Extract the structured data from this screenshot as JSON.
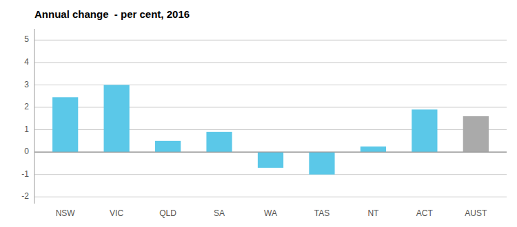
{
  "chart_data": {
    "type": "bar",
    "title": "Annual change  - per cent, 2016",
    "categories": [
      "NSW",
      "VIC",
      "QLD",
      "SA",
      "WA",
      "TAS",
      "NT",
      "ACT",
      "AUST"
    ],
    "values": [
      2.45,
      3.0,
      0.5,
      0.9,
      -0.7,
      -1.0,
      0.25,
      1.9,
      1.6
    ],
    "colors": [
      "#5BC8E8",
      "#5BC8E8",
      "#5BC8E8",
      "#5BC8E8",
      "#5BC8E8",
      "#5BC8E8",
      "#5BC8E8",
      "#5BC8E8",
      "#AAAAAA"
    ],
    "ylim": [
      -2.3,
      5.5
    ],
    "yticks": [
      -2,
      -1,
      0,
      1,
      2,
      3,
      4,
      5
    ],
    "grid": true
  }
}
